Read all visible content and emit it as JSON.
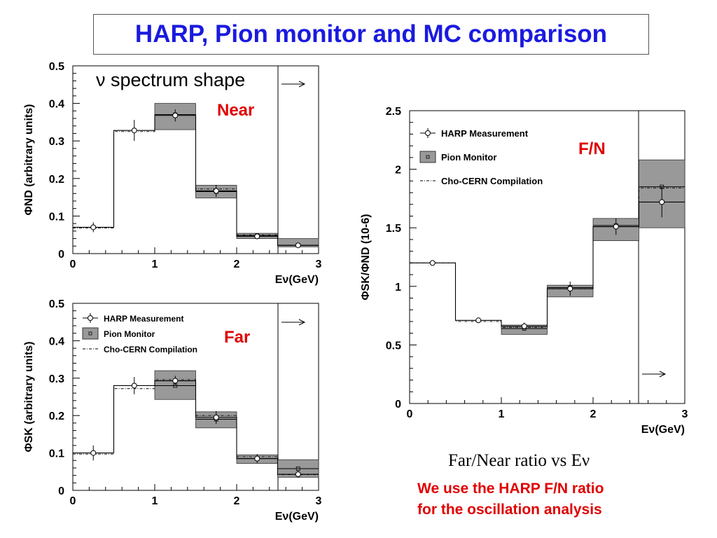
{
  "title": "HARP, Pion monitor and MC comparison",
  "legend_items": [
    "HARP Measurement",
    "Pion Monitor",
    "Cho-CERN Compilation"
  ],
  "caption": "Far/Near ratio vs Eν",
  "note_line1": "We use the HARP F/N ratio",
  "note_line2": "for the oscillation analysis",
  "colors": {
    "title": "#1a1adf",
    "panel_label": "#e00000",
    "band": "#999999"
  },
  "chart_data": [
    {
      "type": "line",
      "panel_label": "Near",
      "annotation": "ν spectrum shape",
      "xlabel": "Eν(GeV)",
      "ylabel": "ΦND (arbitrary units)",
      "xlim": [
        0,
        3
      ],
      "ylim": [
        0,
        0.5
      ],
      "xticks": [
        "0",
        "1",
        "2",
        "3"
      ],
      "yticks": [
        "0",
        "0.1",
        "0.2",
        "0.3",
        "0.4",
        "0.5"
      ],
      "bin_edges": [
        0,
        0.5,
        1.0,
        1.5,
        2.0,
        2.5,
        3.0
      ],
      "series": [
        {
          "name": "HARP Measurement",
          "x": [
            0.25,
            0.75,
            1.25,
            1.75,
            2.25,
            2.75
          ],
          "values": [
            0.07,
            0.328,
            0.368,
            0.167,
            0.046,
            0.022
          ],
          "errors": [
            0.013,
            0.028,
            0.016,
            0.016,
            0.008,
            0.004
          ]
        },
        {
          "name": "Pion Monitor",
          "x": [
            1.25,
            1.75,
            2.25,
            2.75
          ],
          "values": [
            0.37,
            0.165,
            0.048,
            0.022
          ],
          "band_low": [
            0.33,
            0.148,
            0.04,
            0.018
          ],
          "band_high": [
            0.4,
            0.182,
            0.054,
            0.04
          ]
        },
        {
          "name": "Cho-CERN Compilation",
          "x": [
            0.25,
            0.75,
            1.25,
            1.75,
            2.25,
            2.75
          ],
          "values": [
            0.068,
            0.325,
            0.37,
            0.172,
            0.05,
            0.022
          ]
        }
      ]
    },
    {
      "type": "line",
      "panel_label": "Far",
      "xlabel": "Eν(GeV)",
      "ylabel": "ΦSK (arbitrary units)",
      "xlim": [
        0,
        3
      ],
      "ylim": [
        0,
        0.5
      ],
      "xticks": [
        "0",
        "1",
        "2",
        "3"
      ],
      "yticks": [
        "0",
        "0.1",
        "0.2",
        "0.3",
        "0.4",
        "0.5"
      ],
      "bin_edges": [
        0,
        0.5,
        1.0,
        1.5,
        2.0,
        2.5,
        3.0
      ],
      "series": [
        {
          "name": "HARP Measurement",
          "x": [
            0.25,
            0.75,
            1.25,
            1.75,
            2.25,
            2.75
          ],
          "values": [
            0.1,
            0.28,
            0.293,
            0.195,
            0.085,
            0.043
          ],
          "errors": [
            0.02,
            0.023,
            0.013,
            0.017,
            0.012,
            0.009
          ]
        },
        {
          "name": "Pion Monitor",
          "x": [
            1.25,
            1.75,
            2.25,
            2.75
          ],
          "values": [
            0.28,
            0.19,
            0.085,
            0.058
          ],
          "band_low": [
            0.243,
            0.167,
            0.072,
            0.035
          ],
          "band_high": [
            0.32,
            0.21,
            0.095,
            0.082
          ]
        },
        {
          "name": "Cho-CERN Compilation",
          "x": [
            0.25,
            0.75,
            1.25,
            1.75,
            2.25,
            2.75
          ],
          "values": [
            0.097,
            0.272,
            0.296,
            0.2,
            0.09,
            0.042
          ]
        }
      ]
    },
    {
      "type": "line",
      "panel_label": "F/N",
      "xlabel": "Eν(GeV)",
      "ylabel": "ΦSK/ΦND (10-6)",
      "xlim": [
        0,
        3
      ],
      "ylim": [
        0,
        2.5
      ],
      "xticks": [
        "0",
        "1",
        "2",
        "3"
      ],
      "yticks": [
        "0",
        "0.5",
        "1",
        "1.5",
        "2",
        "2.5"
      ],
      "bin_edges": [
        0,
        0.5,
        1.0,
        1.5,
        2.0,
        2.5,
        3.0
      ],
      "series": [
        {
          "name": "HARP Measurement",
          "x": [
            0.25,
            0.75,
            1.25,
            1.75,
            2.25,
            2.75
          ],
          "values": [
            1.2,
            0.71,
            0.66,
            0.98,
            1.51,
            1.72
          ],
          "errors": [
            0.0,
            0.02,
            0.03,
            0.06,
            0.07,
            0.13
          ]
        },
        {
          "name": "Pion Monitor",
          "x": [
            1.25,
            1.75,
            2.25,
            2.75
          ],
          "values": [
            0.64,
            0.99,
            1.52,
            1.85
          ],
          "band_low": [
            0.59,
            0.91,
            1.39,
            1.5
          ],
          "band_high": [
            0.67,
            1.01,
            1.58,
            2.08
          ]
        },
        {
          "name": "Cho-CERN Compilation",
          "x": [
            0.25,
            0.75,
            1.25,
            1.75,
            2.25,
            2.75
          ],
          "values": [
            1.2,
            0.7,
            0.65,
            0.98,
            1.51,
            1.84
          ]
        }
      ]
    }
  ]
}
